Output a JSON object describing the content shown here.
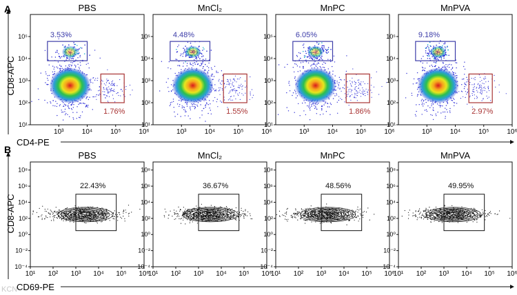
{
  "figure": {
    "watermark": "KCN"
  },
  "chart_data": [
    {
      "panel": "A",
      "type": "scatter",
      "density": true,
      "titles": [
        "PBS",
        "MnCl₂",
        "MnPC",
        "MnPVA"
      ],
      "xlabel": "CD4-PE",
      "ylabel": "CD8-APC",
      "x_scale": "log",
      "y_scale": "log",
      "xlim": [
        100,
        1000000
      ],
      "ylim": [
        10,
        1000000
      ],
      "x_ticks": [
        {
          "v": 1000,
          "t": "10³"
        },
        {
          "v": 10000,
          "t": "10⁴"
        },
        {
          "v": 100000,
          "t": "10⁵"
        },
        {
          "v": 1000000,
          "t": "10⁶"
        }
      ],
      "y_ticks": [
        {
          "v": 10,
          "t": "10¹"
        },
        {
          "v": 100,
          "t": "10²"
        },
        {
          "v": 1000,
          "t": "10³"
        },
        {
          "v": 10000,
          "t": "10⁴"
        },
        {
          "v": 100000,
          "t": "10⁵"
        }
      ],
      "gates": [
        {
          "name": "CD8+ gate",
          "color": "#3c3ca8",
          "x_range": [
            400,
            10000
          ],
          "y_range": [
            8000,
            60000
          ]
        },
        {
          "name": "CD4+ gate",
          "color": "#a83232",
          "x_range": [
            30000,
            200000
          ],
          "y_range": [
            100,
            2000
          ]
        }
      ],
      "series": [
        {
          "name": "PBS",
          "cd8_pct": "3.53%",
          "cd4_pct": "1.76%"
        },
        {
          "name": "MnCl₂",
          "cd8_pct": "4.48%",
          "cd4_pct": "1.55%"
        },
        {
          "name": "MnPC",
          "cd8_pct": "6.05%",
          "cd4_pct": "1.86%"
        },
        {
          "name": "MnPVA",
          "cd8_pct": "9.18%",
          "cd4_pct": "2.97%"
        }
      ]
    },
    {
      "panel": "B",
      "type": "contour",
      "titles": [
        "PBS",
        "MnCl₂",
        "MnPC",
        "MnPVA"
      ],
      "xlabel": "CD69-PE",
      "ylabel": "CD8-APC",
      "x_scale": "log",
      "y_scale": "log",
      "xlim": [
        10,
        1000000
      ],
      "ylim": [
        0.0001,
        1000000000
      ],
      "x_ticks": [
        {
          "v": 10,
          "t": "10¹"
        },
        {
          "v": 100,
          "t": "10²"
        },
        {
          "v": 1000,
          "t": "10³"
        },
        {
          "v": 10000,
          "t": "10⁴"
        },
        {
          "v": 100000,
          "t": "10⁵"
        },
        {
          "v": 1000000,
          "t": "10⁶"
        }
      ],
      "y_ticks": [
        {
          "v": 0.0001,
          "t": "10⁻⁴"
        },
        {
          "v": 0.01,
          "t": "10⁻²"
        },
        {
          "v": 1,
          "t": "10⁰"
        },
        {
          "v": 100,
          "t": "10²"
        },
        {
          "v": 10000,
          "t": "10⁴"
        },
        {
          "v": 1000000,
          "t": "10⁶"
        },
        {
          "v": 100000000,
          "t": "10⁸"
        }
      ],
      "gates": [
        {
          "name": "CD69+ gate",
          "color": "#000000",
          "x_range": [
            1000,
            60000
          ],
          "y_range": [
            3,
            100000
          ]
        }
      ],
      "series": [
        {
          "name": "PBS",
          "cd69_pct": "22.43%",
          "center_x": 2000
        },
        {
          "name": "MnCl₂",
          "cd69_pct": "36.67%",
          "center_x": 2500
        },
        {
          "name": "MnPC",
          "cd69_pct": "48.56%",
          "center_x": 1500
        },
        {
          "name": "MnPVA",
          "cd69_pct": "49.95%",
          "center_x": 2000
        }
      ]
    }
  ]
}
